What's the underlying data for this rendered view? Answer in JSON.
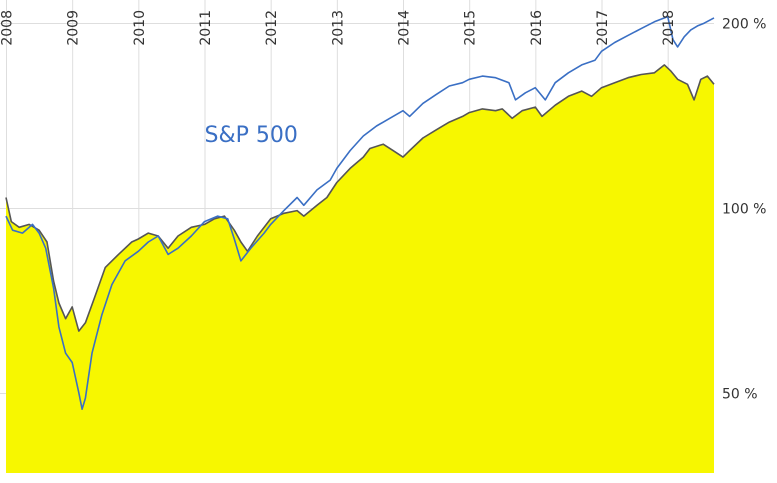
{
  "chart_data": {
    "type": "area",
    "title": "",
    "xlabel": "",
    "ylabel": "",
    "y_scale": "log",
    "ylim": [
      37,
      207
    ],
    "xlim": [
      2008.0,
      2018.7
    ],
    "x_ticks": [
      {
        "value": 2008,
        "label": "2008"
      },
      {
        "value": 2009,
        "label": "2009"
      },
      {
        "value": 2010,
        "label": "2010"
      },
      {
        "value": 2011,
        "label": "2011"
      },
      {
        "value": 2012,
        "label": "2012"
      },
      {
        "value": 2013,
        "label": "2013"
      },
      {
        "value": 2014,
        "label": "2014"
      },
      {
        "value": 2015,
        "label": "2015"
      },
      {
        "value": 2016,
        "label": "2016"
      },
      {
        "value": 2017,
        "label": "2017"
      },
      {
        "value": 2018,
        "label": "2018"
      }
    ],
    "y_ticks": [
      {
        "value": 50,
        "label": "50 %"
      },
      {
        "value": 100,
        "label": "100 %"
      },
      {
        "value": 200,
        "label": "200 %"
      }
    ],
    "grid": true,
    "series": [
      {
        "name": "",
        "style": "area",
        "fill_color": "#f7f700",
        "line_color": "#555555",
        "x": [
          2008.0,
          2008.08,
          2008.2,
          2008.35,
          2008.5,
          2008.62,
          2008.72,
          2008.8,
          2008.9,
          2009.0,
          2009.1,
          2009.2,
          2009.35,
          2009.5,
          2009.7,
          2009.9,
          2010.0,
          2010.15,
          2010.3,
          2010.45,
          2010.6,
          2010.8,
          2011.0,
          2011.15,
          2011.3,
          2011.45,
          2011.55,
          2011.65,
          2011.8,
          2012.0,
          2012.2,
          2012.4,
          2012.5,
          2012.7,
          2012.85,
          2013.0,
          2013.2,
          2013.4,
          2013.5,
          2013.7,
          2013.85,
          2014.0,
          2014.1,
          2014.3,
          2014.5,
          2014.7,
          2014.9,
          2015.0,
          2015.2,
          2015.4,
          2015.5,
          2015.65,
          2015.8,
          2016.0,
          2016.1,
          2016.3,
          2016.5,
          2016.7,
          2016.85,
          2017.0,
          2017.2,
          2017.4,
          2017.6,
          2017.8,
          2017.95,
          2018.05,
          2018.15,
          2018.3,
          2018.4,
          2018.5,
          2018.6,
          2018.7
        ],
        "values": [
          104,
          95,
          93,
          94,
          92,
          88,
          76,
          70,
          66,
          69,
          63,
          65,
          72,
          80,
          84,
          88,
          89,
          91,
          90,
          86,
          90,
          93,
          94,
          96,
          97,
          92,
          88,
          85,
          90,
          96,
          98,
          99,
          97,
          101,
          104,
          110,
          116,
          121,
          125,
          127,
          124,
          121,
          124,
          130,
          134,
          138,
          141,
          143,
          145,
          144,
          145,
          140,
          144,
          146,
          141,
          147,
          152,
          155,
          152,
          157,
          160,
          163,
          165,
          166,
          171,
          167,
          162,
          159,
          150,
          162,
          164,
          159
        ]
      },
      {
        "name": "S&P 500",
        "style": "line",
        "line_color": "#3a6fc4",
        "x": [
          2008.0,
          2008.1,
          2008.25,
          2008.4,
          2008.5,
          2008.6,
          2008.72,
          2008.8,
          2008.9,
          2009.0,
          2009.1,
          2009.15,
          2009.2,
          2009.3,
          2009.45,
          2009.6,
          2009.8,
          2010.0,
          2010.15,
          2010.3,
          2010.45,
          2010.6,
          2010.8,
          2011.0,
          2011.2,
          2011.35,
          2011.45,
          2011.55,
          2011.7,
          2011.9,
          2012.0,
          2012.2,
          2012.4,
          2012.5,
          2012.7,
          2012.9,
          2013.0,
          2013.2,
          2013.4,
          2013.6,
          2013.8,
          2014.0,
          2014.1,
          2014.3,
          2014.5,
          2014.7,
          2014.9,
          2015.0,
          2015.2,
          2015.4,
          2015.6,
          2015.7,
          2015.85,
          2016.0,
          2016.15,
          2016.3,
          2016.5,
          2016.7,
          2016.9,
          2017.0,
          2017.2,
          2017.4,
          2017.6,
          2017.8,
          2018.0,
          2018.08,
          2018.15,
          2018.25,
          2018.35,
          2018.45,
          2018.55,
          2018.7
        ],
        "values": [
          97,
          92,
          91,
          94,
          91,
          86,
          74,
          64,
          58,
          56,
          50,
          47,
          49,
          58,
          67,
          75,
          82,
          85,
          88,
          90,
          84,
          86,
          90,
          95,
          97,
          96,
          89,
          82,
          86,
          91,
          94,
          99,
          104,
          101,
          107,
          111,
          116,
          124,
          131,
          136,
          140,
          144,
          141,
          148,
          153,
          158,
          160,
          162,
          164,
          163,
          160,
          150,
          154,
          157,
          150,
          160,
          166,
          171,
          174,
          180,
          186,
          191,
          196,
          201,
          205,
          188,
          183,
          190,
          195,
          198,
          200,
          204
        ]
      }
    ],
    "annotations": [
      {
        "text": "S&P 500",
        "x": 2011.0,
        "y": 128,
        "color": "#3a6fc4"
      }
    ]
  }
}
